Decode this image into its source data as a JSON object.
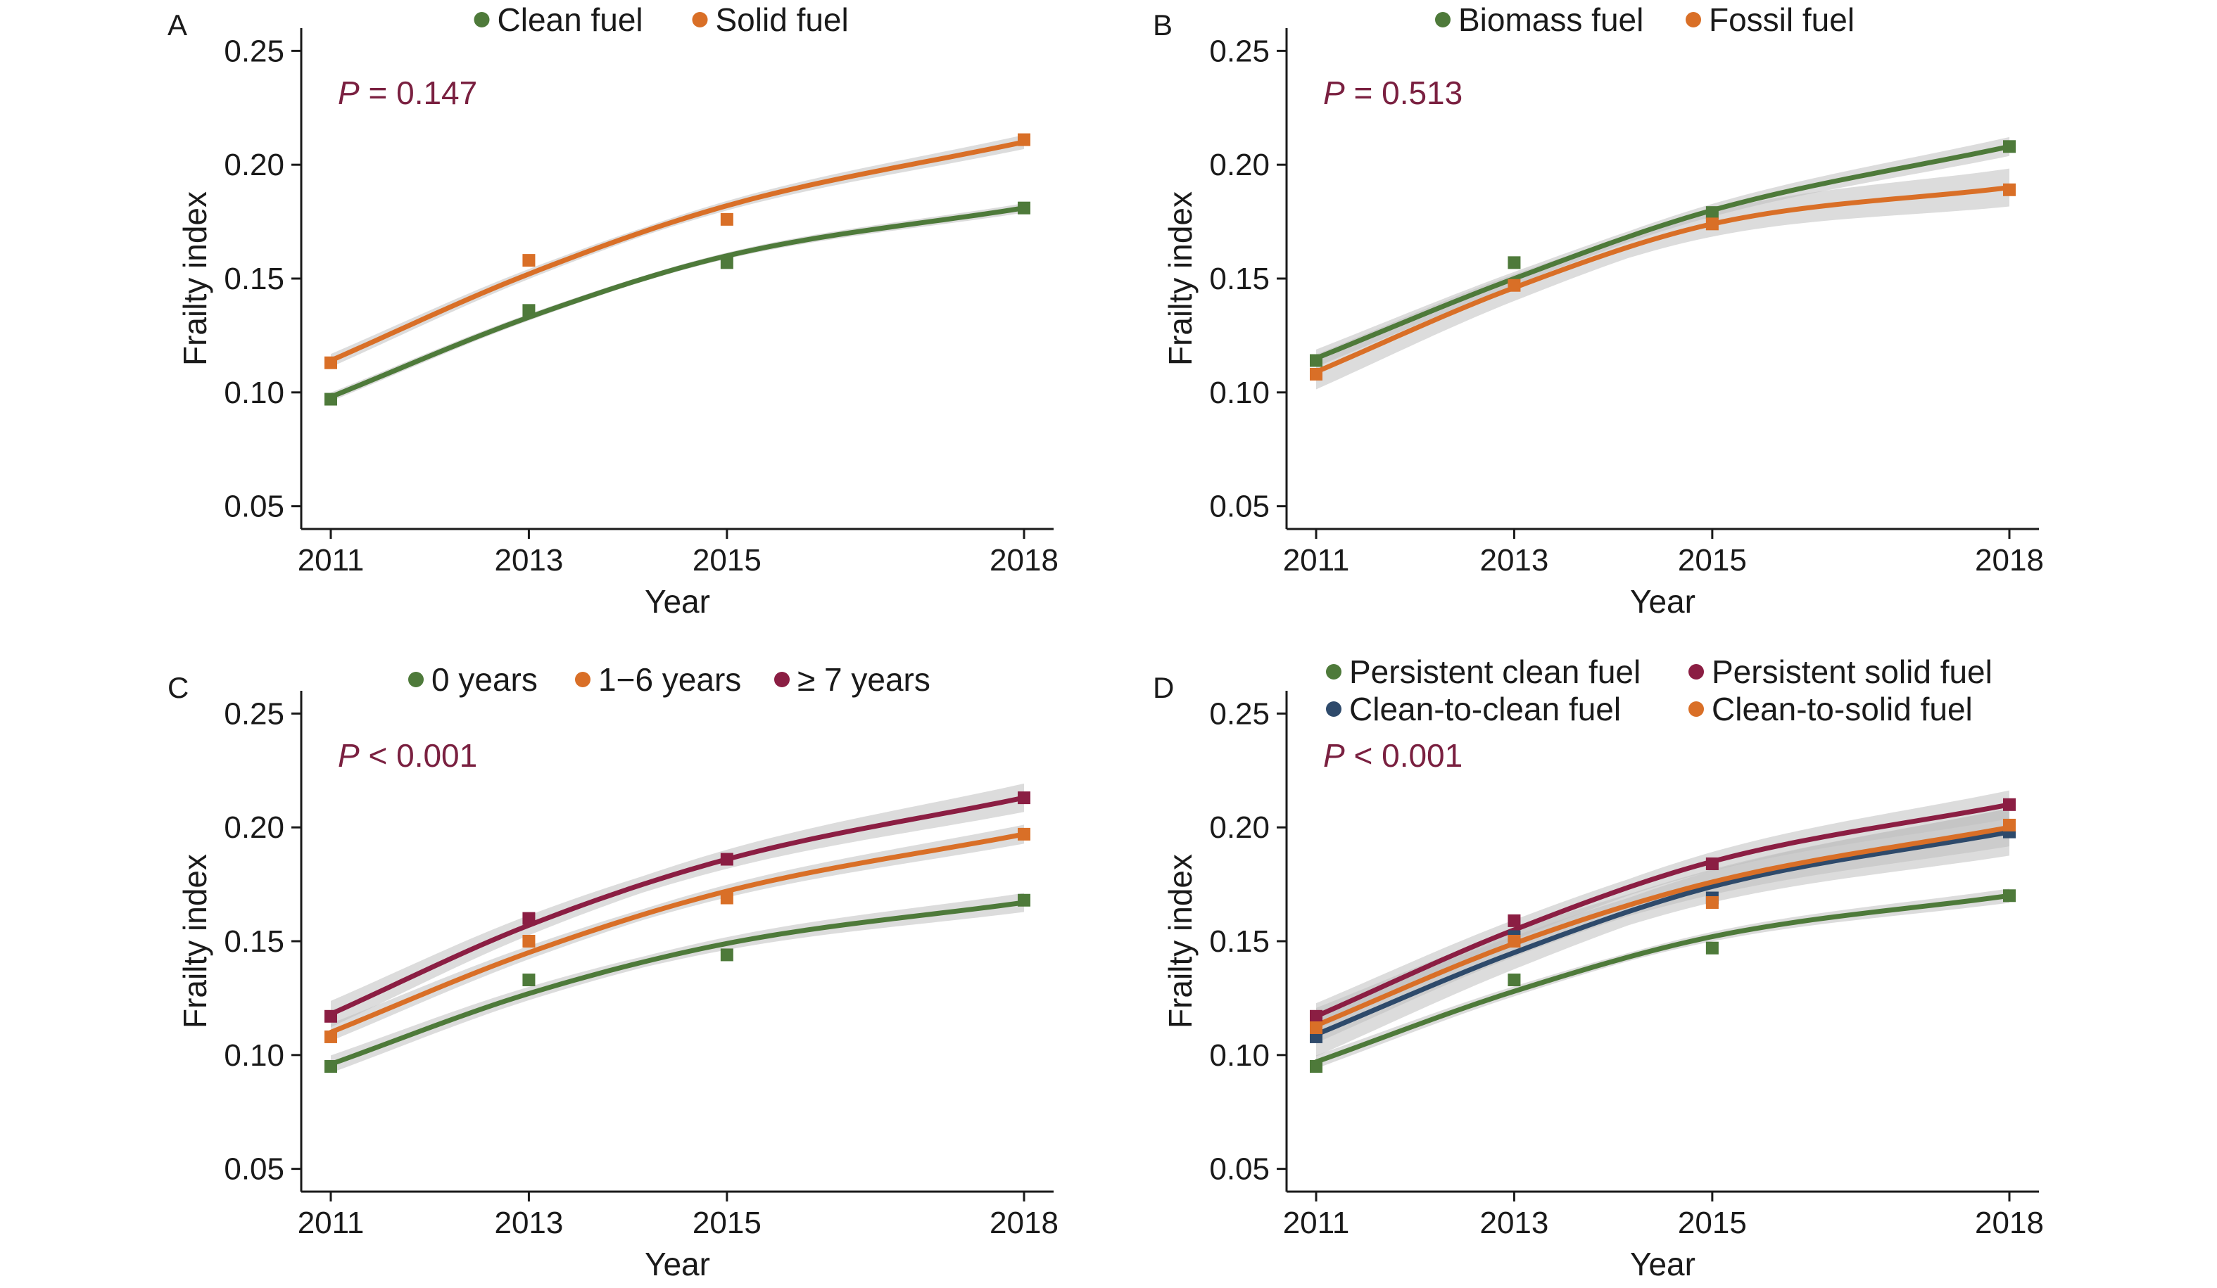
{
  "colors": {
    "green": "#4e7a3a",
    "orange": "#d96f27",
    "maroon": "#8b1e43",
    "navy": "#2e4a6b",
    "pvalue": "#7a2040",
    "ci_band": "#bfbfbf"
  },
  "chart_data": [
    {
      "panel": "A",
      "type": "line",
      "p_label": "P",
      "p_value": " = 0.147",
      "xlabel": "Year",
      "ylabel": "Frailty index",
      "x": [
        2011,
        2013,
        2015,
        2018
      ],
      "x_ticks": [
        "2011",
        "2013",
        "2015",
        "2018"
      ],
      "ylim": [
        0.04,
        0.26
      ],
      "y_ticks": [
        "0.05",
        "0.10",
        "0.15",
        "0.20",
        "0.25"
      ],
      "legend": "top",
      "series": [
        {
          "name": "Clean fuel",
          "color_key": "green",
          "values": [
            0.097,
            0.136,
            0.157,
            0.181
          ],
          "fit": [
            0.098,
            0.133,
            0.16,
            0.181
          ],
          "ci": 0.002
        },
        {
          "name": "Solid fuel",
          "color_key": "orange",
          "values": [
            0.113,
            0.158,
            0.176,
            0.211
          ],
          "fit": [
            0.114,
            0.152,
            0.182,
            0.21
          ],
          "ci": 0.003
        }
      ]
    },
    {
      "panel": "B",
      "type": "line",
      "p_label": "P",
      "p_value": " = 0.513",
      "xlabel": "Year",
      "ylabel": "Frailty index",
      "x": [
        2011,
        2013,
        2015,
        2018
      ],
      "x_ticks": [
        "2011",
        "2013",
        "2015",
        "2018"
      ],
      "ylim": [
        0.04,
        0.26
      ],
      "y_ticks": [
        "0.05",
        "0.10",
        "0.15",
        "0.20",
        "0.25"
      ],
      "legend": "top",
      "series": [
        {
          "name": "Biomass fuel",
          "color_key": "green",
          "values": [
            0.114,
            0.157,
            0.179,
            0.208
          ],
          "fit": [
            0.115,
            0.15,
            0.18,
            0.208
          ],
          "ci": 0.004
        },
        {
          "name": "Fossil fuel",
          "color_key": "orange",
          "values": [
            0.108,
            0.147,
            0.174,
            0.189
          ],
          "fit": [
            0.109,
            0.146,
            0.174,
            0.19
          ],
          "ci": 0.008
        }
      ]
    },
    {
      "panel": "C",
      "type": "line",
      "p_label": "P",
      "p_value": " < 0.001",
      "xlabel": "Year",
      "ylabel": "Frailty index",
      "x": [
        2011,
        2013,
        2015,
        2018
      ],
      "x_ticks": [
        "2011",
        "2013",
        "2015",
        "2018"
      ],
      "ylim": [
        0.04,
        0.26
      ],
      "y_ticks": [
        "0.05",
        "0.10",
        "0.15",
        "0.20",
        "0.25"
      ],
      "legend": "top",
      "series": [
        {
          "name": "0 years",
          "color_key": "green",
          "values": [
            0.095,
            0.133,
            0.144,
            0.168
          ],
          "fit": [
            0.096,
            0.127,
            0.149,
            0.167
          ],
          "ci": 0.004
        },
        {
          "name": "1−6 years",
          "color_key": "orange",
          "values": [
            0.108,
            0.15,
            0.169,
            0.197
          ],
          "fit": [
            0.11,
            0.145,
            0.172,
            0.197
          ],
          "ci": 0.004
        },
        {
          "name": "≥ 7 years",
          "color_key": "maroon",
          "values": [
            0.117,
            0.16,
            0.186,
            0.213
          ],
          "fit": [
            0.118,
            0.157,
            0.186,
            0.213
          ],
          "ci": 0.006
        }
      ]
    },
    {
      "panel": "D",
      "type": "line",
      "p_label": "P",
      "p_value": " < 0.001",
      "xlabel": "Year",
      "ylabel": "Frailty index",
      "x": [
        2011,
        2013,
        2015,
        2018
      ],
      "x_ticks": [
        "2011",
        "2013",
        "2015",
        "2018"
      ],
      "ylim": [
        0.04,
        0.26
      ],
      "y_ticks": [
        "0.05",
        "0.10",
        "0.15",
        "0.20",
        "0.25"
      ],
      "legend": "top",
      "series": [
        {
          "name": "Persistent clean fuel",
          "color_key": "green",
          "values": [
            0.095,
            0.133,
            0.147,
            0.17
          ],
          "fit": [
            0.097,
            0.128,
            0.152,
            0.17
          ],
          "ci": 0.003
        },
        {
          "name": "Persistent solid fuel",
          "color_key": "maroon",
          "values": [
            0.117,
            0.159,
            0.184,
            0.21
          ],
          "fit": [
            0.117,
            0.155,
            0.185,
            0.21
          ],
          "ci": 0.006
        },
        {
          "name": "Clean-to-clean fuel",
          "color_key": "navy",
          "values": [
            0.108,
            0.152,
            0.169,
            0.198
          ],
          "fit": [
            0.109,
            0.145,
            0.174,
            0.198
          ],
          "ci": 0.01
        },
        {
          "name": "Clean-to-solid fuel",
          "color_key": "orange",
          "values": [
            0.112,
            0.15,
            0.167,
            0.201
          ],
          "fit": [
            0.113,
            0.149,
            0.176,
            0.2
          ],
          "ci": 0.008
        }
      ]
    }
  ]
}
